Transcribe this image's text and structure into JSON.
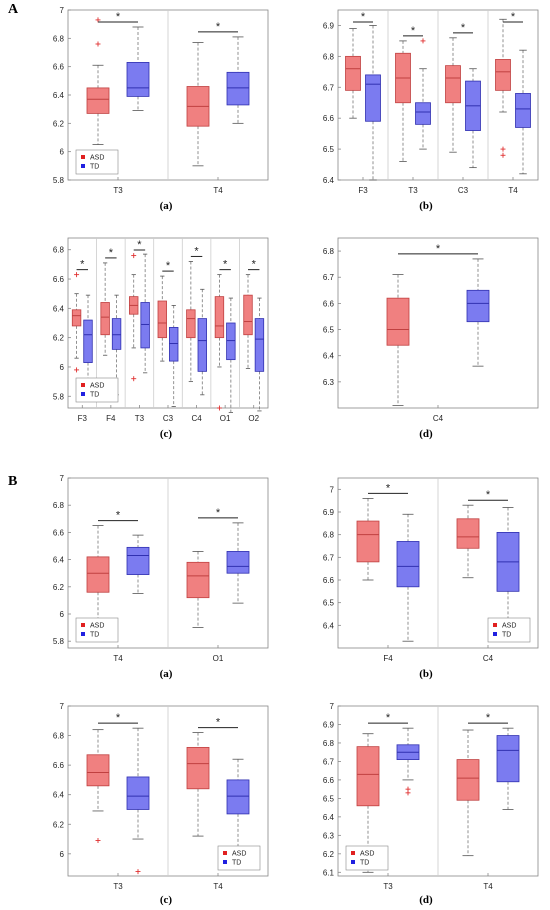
{
  "figure": {
    "section_labels": [
      "A",
      "B"
    ]
  },
  "chart_data": [
    {
      "panel": "A",
      "caption": "(a)",
      "type": "box",
      "categories": [
        "T3",
        "T4"
      ],
      "ylim": [
        5.8,
        7
      ],
      "yticks": [
        5.8,
        6,
        6.2,
        6.4,
        6.6,
        6.8,
        7
      ],
      "series": [
        {
          "name": "ASD",
          "color": "#f08080",
          "boxes": [
            {
              "min": 6.05,
              "q1": 6.27,
              "median": 6.37,
              "q3": 6.45,
              "max": 6.61,
              "outliers": [
                6.76,
                6.93,
                5.98
              ]
            },
            {
              "min": 5.9,
              "q1": 6.18,
              "median": 6.32,
              "q3": 6.46,
              "max": 6.77,
              "outliers": []
            }
          ]
        },
        {
          "name": "TD",
          "color": "#7b7bf0",
          "boxes": [
            {
              "min": 6.29,
              "q1": 6.39,
              "median": 6.45,
              "q3": 6.63,
              "max": 6.88,
              "outliers": []
            },
            {
              "min": 6.2,
              "q1": 6.33,
              "median": 6.45,
              "q3": 6.56,
              "max": 6.81,
              "outliers": []
            }
          ]
        }
      ],
      "significance": [
        0,
        1
      ],
      "legend": {
        "position": "bottom-left",
        "entries": [
          "ASD",
          "TD"
        ]
      }
    },
    {
      "panel": "A",
      "caption": "(b)",
      "type": "box",
      "categories": [
        "F3",
        "T3",
        "C3",
        "T4"
      ],
      "ylim": [
        6.4,
        6.95
      ],
      "yticks": [
        6.4,
        6.5,
        6.6,
        6.7,
        6.8,
        6.9
      ],
      "series": [
        {
          "name": "ASD",
          "color": "#f08080",
          "boxes": [
            {
              "min": 6.6,
              "q1": 6.69,
              "median": 6.76,
              "q3": 6.8,
              "max": 6.89,
              "outliers": []
            },
            {
              "min": 6.46,
              "q1": 6.65,
              "median": 6.73,
              "q3": 6.81,
              "max": 6.85,
              "outliers": []
            },
            {
              "min": 6.49,
              "q1": 6.65,
              "median": 6.73,
              "q3": 6.77,
              "max": 6.86,
              "outliers": []
            },
            {
              "min": 6.62,
              "q1": 6.69,
              "median": 6.75,
              "q3": 6.79,
              "max": 6.92,
              "outliers": [
                6.5,
                6.48
              ]
            }
          ]
        },
        {
          "name": "TD",
          "color": "#7b7bf0",
          "boxes": [
            {
              "min": 6.4,
              "q1": 6.59,
              "median": 6.71,
              "q3": 6.74,
              "max": 6.9,
              "outliers": []
            },
            {
              "min": 6.5,
              "q1": 6.58,
              "median": 6.62,
              "q3": 6.65,
              "max": 6.76,
              "outliers": [
                6.85
              ]
            },
            {
              "min": 6.44,
              "q1": 6.56,
              "median": 6.64,
              "q3": 6.72,
              "max": 6.76,
              "outliers": []
            },
            {
              "min": 6.42,
              "q1": 6.57,
              "median": 6.63,
              "q3": 6.68,
              "max": 6.82,
              "outliers": []
            }
          ]
        }
      ],
      "significance": [
        0,
        1,
        2,
        3
      ],
      "legend": {
        "position": "none",
        "entries": []
      }
    },
    {
      "panel": "A",
      "caption": "(c)",
      "type": "box",
      "categories": [
        "F3",
        "F4",
        "T3",
        "C3",
        "C4",
        "O1",
        "O2"
      ],
      "ylim": [
        5.72,
        6.88
      ],
      "yticks": [
        5.8,
        6,
        6.2,
        6.4,
        6.6,
        6.8
      ],
      "series": [
        {
          "name": "ASD",
          "color": "#f08080",
          "boxes": [
            {
              "min": 6.06,
              "q1": 6.28,
              "median": 6.35,
              "q3": 6.39,
              "max": 6.5,
              "outliers": [
                6.63,
                5.98
              ]
            },
            {
              "min": 6.08,
              "q1": 6.22,
              "median": 6.34,
              "q3": 6.44,
              "max": 6.71,
              "outliers": []
            },
            {
              "min": 6.13,
              "q1": 6.36,
              "median": 6.42,
              "q3": 6.48,
              "max": 6.63,
              "outliers": [
                6.76,
                5.92
              ]
            },
            {
              "min": 6.04,
              "q1": 6.2,
              "median": 6.3,
              "q3": 6.45,
              "max": 6.62,
              "outliers": []
            },
            {
              "min": 5.9,
              "q1": 6.2,
              "median": 6.33,
              "q3": 6.39,
              "max": 6.72,
              "outliers": []
            },
            {
              "min": 6.0,
              "q1": 6.2,
              "median": 6.28,
              "q3": 6.48,
              "max": 6.63,
              "outliers": [
                5.72
              ]
            },
            {
              "min": 5.99,
              "q1": 6.22,
              "median": 6.31,
              "q3": 6.49,
              "max": 6.63,
              "outliers": []
            }
          ]
        },
        {
          "name": "TD",
          "color": "#7b7bf0",
          "boxes": [
            {
              "min": 5.85,
              "q1": 6.03,
              "median": 6.22,
              "q3": 6.32,
              "max": 6.49,
              "outliers": []
            },
            {
              "min": 5.81,
              "q1": 6.12,
              "median": 6.22,
              "q3": 6.33,
              "max": 6.49,
              "outliers": []
            },
            {
              "min": 5.96,
              "q1": 6.13,
              "median": 6.29,
              "q3": 6.44,
              "max": 6.77,
              "outliers": []
            },
            {
              "min": 5.73,
              "q1": 6.04,
              "median": 6.16,
              "q3": 6.27,
              "max": 6.42,
              "outliers": []
            },
            {
              "min": 5.81,
              "q1": 5.97,
              "median": 6.18,
              "q3": 6.33,
              "max": 6.53,
              "outliers": []
            },
            {
              "min": 5.69,
              "q1": 6.05,
              "median": 6.18,
              "q3": 6.3,
              "max": 6.47,
              "outliers": []
            },
            {
              "min": 5.7,
              "q1": 5.97,
              "median": 6.19,
              "q3": 6.33,
              "max": 6.47,
              "outliers": []
            }
          ]
        }
      ],
      "significance": [
        0,
        1,
        2,
        3,
        4,
        5,
        6
      ],
      "legend": {
        "position": "bottom-left",
        "entries": [
          "ASD",
          "TD"
        ]
      }
    },
    {
      "panel": "A",
      "caption": "(d)",
      "type": "box",
      "categories": [
        "C4"
      ],
      "ylim": [
        6.2,
        6.85
      ],
      "yticks": [
        6.3,
        6.4,
        6.5,
        6.6,
        6.7,
        6.8
      ],
      "series": [
        {
          "name": "ASD",
          "color": "#f08080",
          "boxes": [
            {
              "min": 6.21,
              "q1": 6.44,
              "median": 6.5,
              "q3": 6.62,
              "max": 6.71,
              "outliers": []
            }
          ]
        },
        {
          "name": "TD",
          "color": "#7b7bf0",
          "boxes": [
            {
              "min": 6.36,
              "q1": 6.53,
              "median": 6.6,
              "q3": 6.65,
              "max": 6.77,
              "outliers": []
            }
          ]
        }
      ],
      "significance": [
        0
      ],
      "legend": {
        "position": "none",
        "entries": []
      }
    },
    {
      "panel": "B",
      "caption": "(a)",
      "type": "box",
      "categories": [
        "T4",
        "O1"
      ],
      "ylim": [
        5.75,
        7
      ],
      "yticks": [
        5.8,
        6,
        6.2,
        6.4,
        6.6,
        6.8,
        7
      ],
      "series": [
        {
          "name": "ASD",
          "color": "#f08080",
          "boxes": [
            {
              "min": 5.87,
              "q1": 6.16,
              "median": 6.3,
              "q3": 6.42,
              "max": 6.65,
              "outliers": []
            },
            {
              "min": 5.9,
              "q1": 6.12,
              "median": 6.28,
              "q3": 6.38,
              "max": 6.46,
              "outliers": []
            }
          ]
        },
        {
          "name": "TD",
          "color": "#7b7bf0",
          "boxes": [
            {
              "min": 6.15,
              "q1": 6.29,
              "median": 6.43,
              "q3": 6.49,
              "max": 6.58,
              "outliers": []
            },
            {
              "min": 6.08,
              "q1": 6.3,
              "median": 6.35,
              "q3": 6.46,
              "max": 6.67,
              "outliers": []
            }
          ]
        }
      ],
      "significance": [
        0,
        1
      ],
      "legend": {
        "position": "bottom-left",
        "entries": [
          "ASD",
          "TD"
        ]
      }
    },
    {
      "panel": "B",
      "caption": "(b)",
      "type": "box",
      "categories": [
        "F4",
        "C4"
      ],
      "ylim": [
        6.3,
        7.05
      ],
      "yticks": [
        6.4,
        6.5,
        6.6,
        6.7,
        6.8,
        6.9,
        7
      ],
      "series": [
        {
          "name": "ASD",
          "color": "#f08080",
          "boxes": [
            {
              "min": 6.6,
              "q1": 6.68,
              "median": 6.8,
              "q3": 6.86,
              "max": 6.96,
              "outliers": []
            },
            {
              "min": 6.61,
              "q1": 6.74,
              "median": 6.79,
              "q3": 6.87,
              "max": 6.93,
              "outliers": []
            }
          ]
        },
        {
          "name": "TD",
          "color": "#7b7bf0",
          "boxes": [
            {
              "min": 6.33,
              "q1": 6.57,
              "median": 6.66,
              "q3": 6.77,
              "max": 6.89,
              "outliers": []
            },
            {
              "min": 6.33,
              "q1": 6.55,
              "median": 6.68,
              "q3": 6.81,
              "max": 6.92,
              "outliers": []
            }
          ]
        }
      ],
      "significance": [
        0,
        1
      ],
      "legend": {
        "position": "bottom-right",
        "entries": [
          "ASD",
          "TD"
        ]
      }
    },
    {
      "panel": "B",
      "caption": "(c)",
      "type": "box",
      "categories": [
        "T3",
        "T4"
      ],
      "ylim": [
        5.85,
        7
      ],
      "yticks": [
        6,
        6.2,
        6.4,
        6.6,
        6.8,
        7
      ],
      "series": [
        {
          "name": "ASD",
          "color": "#f08080",
          "boxes": [
            {
              "min": 6.29,
              "q1": 6.46,
              "median": 6.55,
              "q3": 6.67,
              "max": 6.84,
              "outliers": [
                6.09
              ]
            },
            {
              "min": 6.12,
              "q1": 6.44,
              "median": 6.61,
              "q3": 6.72,
              "max": 6.82,
              "outliers": []
            }
          ]
        },
        {
          "name": "TD",
          "color": "#7b7bf0",
          "boxes": [
            {
              "min": 6.1,
              "q1": 6.3,
              "median": 6.39,
              "q3": 6.52,
              "max": 6.85,
              "outliers": [
                5.88
              ]
            },
            {
              "min": 5.92,
              "q1": 6.27,
              "median": 6.39,
              "q3": 6.5,
              "max": 6.64,
              "outliers": []
            }
          ]
        }
      ],
      "significance": [
        0,
        1
      ],
      "legend": {
        "position": "bottom-right",
        "entries": [
          "ASD",
          "TD"
        ]
      }
    },
    {
      "panel": "B",
      "caption": "(d)",
      "type": "box",
      "categories": [
        "T3",
        "T4"
      ],
      "ylim": [
        6.08,
        7
      ],
      "yticks": [
        6.1,
        6.2,
        6.3,
        6.4,
        6.5,
        6.6,
        6.7,
        6.8,
        6.9,
        7
      ],
      "series": [
        {
          "name": "ASD",
          "color": "#f08080",
          "boxes": [
            {
              "min": 6.1,
              "q1": 6.46,
              "median": 6.63,
              "q3": 6.78,
              "max": 6.85,
              "outliers": []
            },
            {
              "min": 6.19,
              "q1": 6.49,
              "median": 6.61,
              "q3": 6.71,
              "max": 6.87,
              "outliers": []
            }
          ]
        },
        {
          "name": "TD",
          "color": "#7b7bf0",
          "boxes": [
            {
              "min": 6.6,
              "q1": 6.71,
              "median": 6.75,
              "q3": 6.79,
              "max": 6.88,
              "outliers": [
                6.55,
                6.53
              ]
            },
            {
              "min": 6.44,
              "q1": 6.59,
              "median": 6.76,
              "q3": 6.84,
              "max": 6.88,
              "outliers": []
            }
          ]
        }
      ],
      "significance": [
        0,
        1
      ],
      "legend": {
        "position": "bottom-left",
        "entries": [
          "ASD",
          "TD"
        ]
      }
    }
  ]
}
